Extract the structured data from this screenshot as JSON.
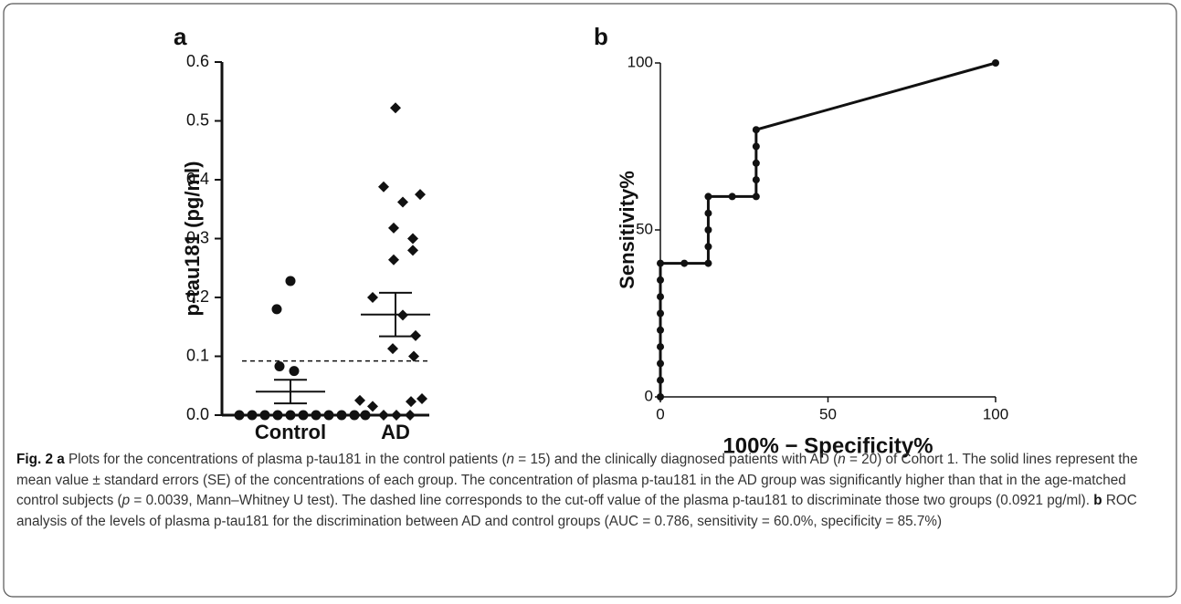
{
  "chart_data": [
    {
      "type": "dot",
      "label": "a",
      "y_label": "p-tau181 (pg/ml)",
      "categories": [
        "Control",
        "AD"
      ],
      "markers": [
        "circle",
        "diamond"
      ],
      "values": [
        [
          0.228,
          0.18,
          0.083,
          0.075,
          0,
          0,
          0,
          0,
          0,
          0,
          0,
          0,
          0,
          0,
          0
        ],
        [
          0.522,
          0.388,
          0.375,
          0.362,
          0.318,
          0.3,
          0.28,
          0.264,
          0.2,
          0.17,
          0.135,
          0.113,
          0.1,
          0.025,
          0.015,
          0.028,
          0.023,
          0,
          0,
          0
        ]
      ],
      "mean": [
        0.04,
        0.171
      ],
      "se": [
        0.02,
        0.037
      ],
      "cutoff": 0.0921,
      "color": "#111111",
      "ylim": [
        0,
        0.6
      ],
      "yticks": [
        {
          "value": 0,
          "label": "0.0"
        },
        0.1,
        0.2,
        0.3,
        0.4,
        0.5,
        0.6
      ]
    },
    {
      "type": "line",
      "label": "b",
      "y_label": "Sensitivity%",
      "x_label": "100% − Specificity%",
      "x": [
        0,
        0,
        0,
        0,
        0,
        0,
        0,
        0,
        0,
        7.14,
        14.29,
        14.29,
        14.29,
        14.29,
        14.29,
        21.43,
        28.57,
        28.57,
        28.57,
        28.57,
        28.57,
        100
      ],
      "y": [
        0,
        5,
        10,
        15,
        20,
        25,
        30,
        35,
        40,
        40,
        40,
        45,
        50,
        55,
        60,
        60,
        60,
        65,
        70,
        75,
        80,
        100
      ],
      "color": "#111111",
      "xlim": [
        0,
        100
      ],
      "xticks": [
        0,
        50,
        100
      ],
      "ylim": [
        0,
        100
      ],
      "yticks": [
        0,
        50,
        100
      ]
    }
  ],
  "caption": [
    {
      "text": "Fig. 2",
      "bold": true
    },
    {
      "text": " "
    },
    {
      "text": "a",
      "bold": true
    },
    {
      "text": " Plots for the concentrations of plasma p-tau181 in the control patients ("
    },
    {
      "text": "n",
      "italic": true
    },
    {
      "text": " = 15) and the clinically diagnosed patients with AD ("
    },
    {
      "text": "n",
      "italic": true
    },
    {
      "text": " = 20) of Cohort 1. The solid lines represent the mean value ± standard errors (SE) of the concentrations of each group. The concentration of plasma p-tau181 in the AD group was significantly higher than that in the age-matched control subjects ("
    },
    {
      "text": "p",
      "italic": true
    },
    {
      "text": " = 0.0039, Mann–Whitney U test). The dashed line corresponds to the cut-off value of the plasma p-tau181 to discriminate those two groups (0.0921 pg/ml). "
    },
    {
      "text": "b",
      "bold": true
    },
    {
      "text": " ROC analysis of the levels of plasma p-tau181 for the discrimination between AD and control groups (AUC = 0.786, sensitivity = 60.0%, specificity = 85.7%)"
    }
  ]
}
